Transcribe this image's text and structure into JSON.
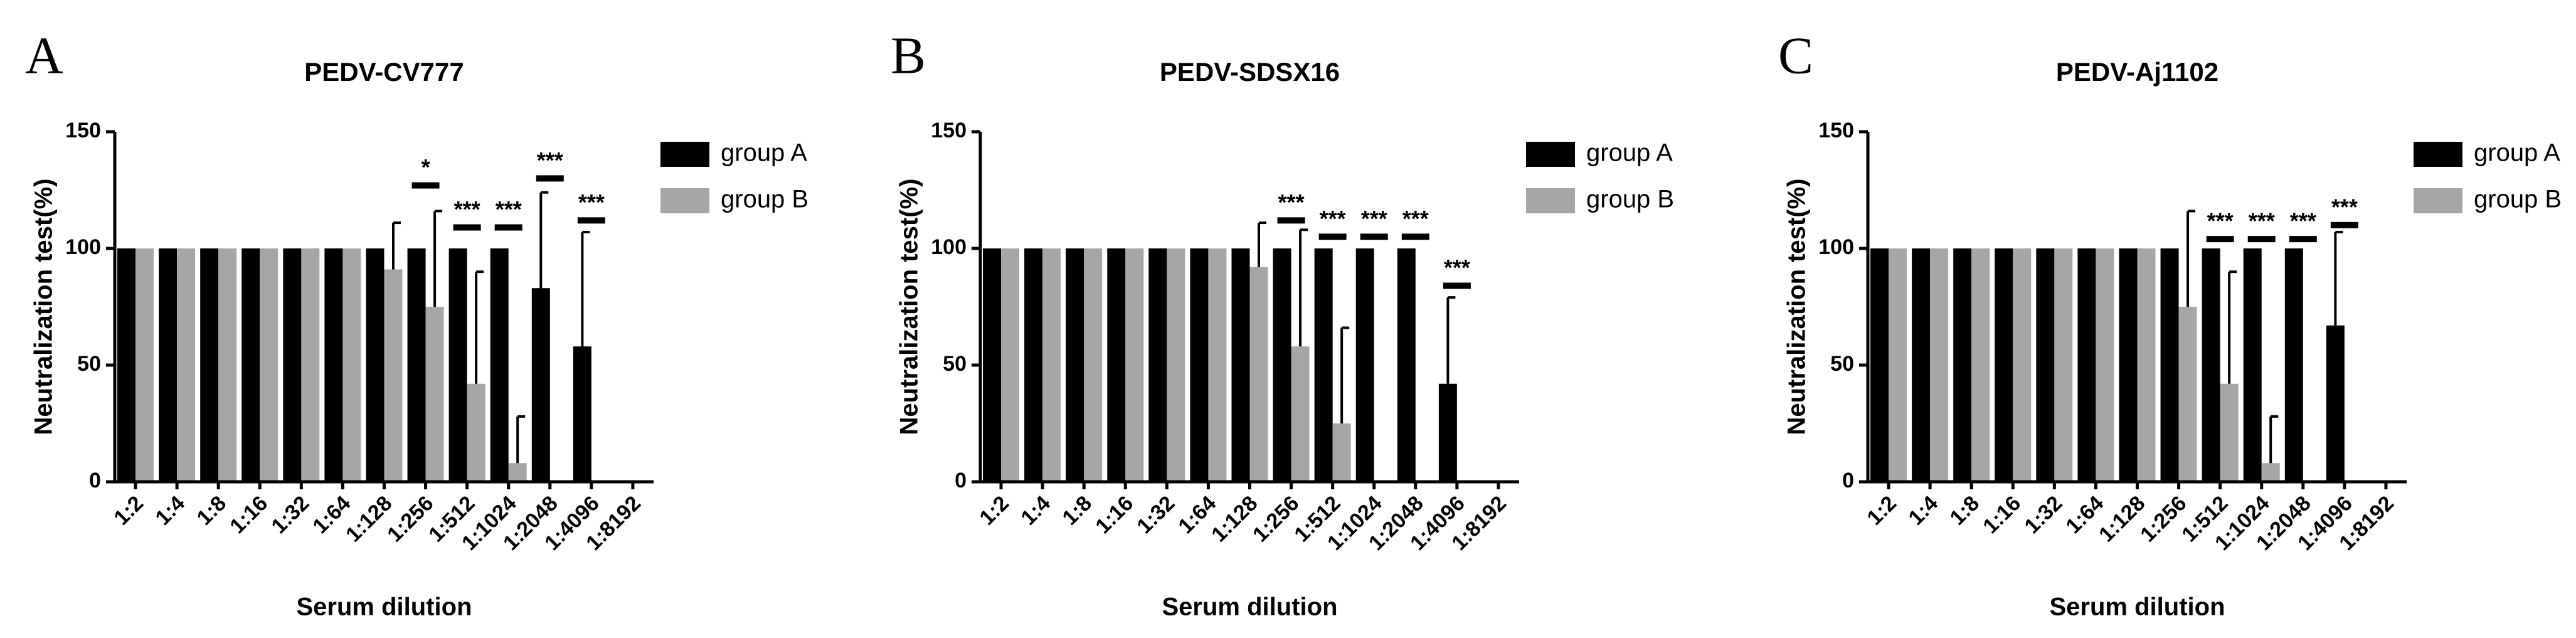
{
  "chart_data": [
    {
      "type": "bar",
      "panel_label": "A",
      "title": "PEDV-CV777",
      "x_label": "Serum dilution",
      "y_label": "Neutralization test(%)",
      "categories": [
        "1:2",
        "1:4",
        "1:8",
        "1:16",
        "1:32",
        "1:64",
        "1:128",
        "1:256",
        "1:512",
        "1:1024",
        "1:2048",
        "1:4096",
        "1:8192"
      ],
      "series": [
        {
          "name": "group A",
          "color": "#000000",
          "values": [
            100,
            100,
            100,
            100,
            100,
            100,
            100,
            100,
            100,
            100,
            83,
            58,
            0
          ],
          "errors": [
            null,
            null,
            null,
            null,
            null,
            null,
            null,
            null,
            null,
            null,
            41,
            49,
            null
          ]
        },
        {
          "name": "group B",
          "color": "#a6a6a6",
          "values": [
            100,
            100,
            100,
            100,
            100,
            100,
            91,
            75,
            42,
            8,
            0,
            0,
            0
          ],
          "errors": [
            null,
            null,
            null,
            null,
            null,
            null,
            20,
            41,
            48,
            20,
            null,
            null,
            null
          ]
        }
      ],
      "annotations": [
        {
          "text": "*",
          "x": "1:256",
          "y": 127
        },
        {
          "text": "***",
          "x": "1:512",
          "y": 109
        },
        {
          "text": "***",
          "x": "1:1024",
          "y": 109
        },
        {
          "text": "***",
          "x": "1:2048",
          "y": 130
        },
        {
          "text": "***",
          "x": "1:4096",
          "y": 112
        }
      ],
      "ylim": [
        0,
        150
      ],
      "yticks": [
        0,
        50,
        100,
        150
      ],
      "legend": "right"
    },
    {
      "type": "bar",
      "panel_label": "B",
      "title": "PEDV-SDSX16",
      "x_label": "Serum dilution",
      "y_label": "Neutralization test(%)",
      "categories": [
        "1:2",
        "1:4",
        "1:8",
        "1:16",
        "1:32",
        "1:64",
        "1:128",
        "1:256",
        "1:512",
        "1:1024",
        "1:2048",
        "1:4096",
        "1:8192"
      ],
      "series": [
        {
          "name": "group A",
          "color": "#000000",
          "values": [
            100,
            100,
            100,
            100,
            100,
            100,
            100,
            100,
            100,
            100,
            100,
            42,
            0
          ],
          "errors": [
            null,
            null,
            null,
            null,
            null,
            null,
            null,
            null,
            null,
            null,
            null,
            37,
            null
          ]
        },
        {
          "name": "group B",
          "color": "#a6a6a6",
          "values": [
            100,
            100,
            100,
            100,
            100,
            100,
            92,
            58,
            25,
            0,
            0,
            0,
            0
          ],
          "errors": [
            null,
            null,
            null,
            null,
            null,
            null,
            19,
            50,
            41,
            null,
            null,
            null,
            null
          ]
        }
      ],
      "annotations": [
        {
          "text": "***",
          "x": "1:256",
          "y": 112
        },
        {
          "text": "***",
          "x": "1:512",
          "y": 105
        },
        {
          "text": "***",
          "x": "1:1024",
          "y": 105
        },
        {
          "text": "***",
          "x": "1:2048",
          "y": 105
        },
        {
          "text": "***",
          "x": "1:4096",
          "y": 84
        }
      ],
      "ylim": [
        0,
        150
      ],
      "yticks": [
        0,
        50,
        100,
        150
      ],
      "legend": "right"
    },
    {
      "type": "bar",
      "panel_label": "C",
      "title": "PEDV-Aj1102",
      "x_label": "Serum dilution",
      "y_label": "Neutralization test(%)",
      "categories": [
        "1:2",
        "1:4",
        "1:8",
        "1:16",
        "1:32",
        "1:64",
        "1:128",
        "1:256",
        "1:512",
        "1:1024",
        "1:2048",
        "1:4096",
        "1:8192"
      ],
      "series": [
        {
          "name": "group A",
          "color": "#000000",
          "values": [
            100,
            100,
            100,
            100,
            100,
            100,
            100,
            100,
            100,
            100,
            100,
            67,
            0
          ],
          "errors": [
            null,
            null,
            null,
            null,
            null,
            null,
            null,
            null,
            null,
            null,
            null,
            40,
            null
          ]
        },
        {
          "name": "group B",
          "color": "#a6a6a6",
          "values": [
            100,
            100,
            100,
            100,
            100,
            100,
            100,
            75,
            42,
            8,
            0,
            0,
            0
          ],
          "errors": [
            null,
            null,
            null,
            null,
            null,
            null,
            null,
            41,
            48,
            20,
            null,
            null,
            null
          ]
        }
      ],
      "annotations": [
        {
          "text": "***",
          "x": "1:512",
          "y": 104
        },
        {
          "text": "***",
          "x": "1:1024",
          "y": 104
        },
        {
          "text": "***",
          "x": "1:2048",
          "y": 104
        },
        {
          "text": "***",
          "x": "1:4096",
          "y": 110
        }
      ],
      "ylim": [
        0,
        150
      ],
      "yticks": [
        0,
        50,
        100,
        150
      ],
      "legend": "right"
    }
  ]
}
